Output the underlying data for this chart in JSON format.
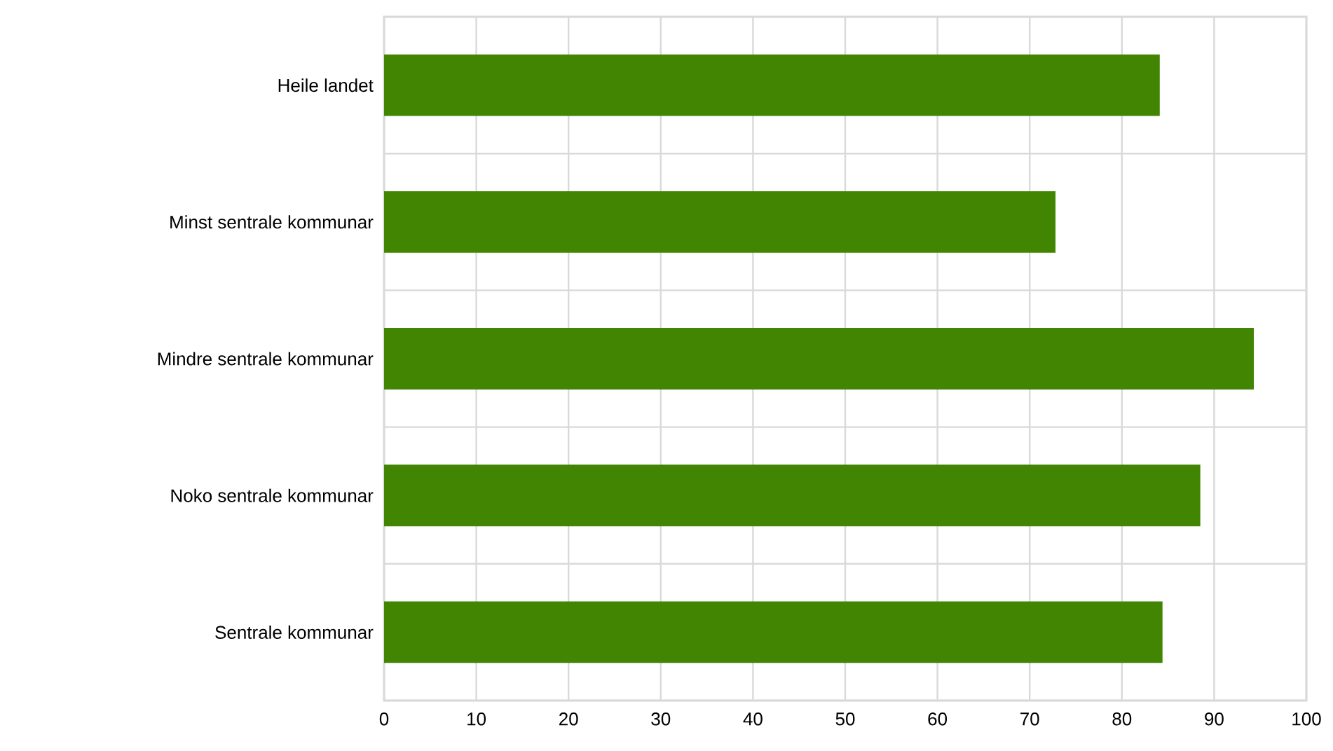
{
  "chart_data": {
    "type": "bar",
    "orientation": "horizontal",
    "categories": [
      "Heile landet",
      "Minst sentrale kommunar",
      "Mindre sentrale kommunar",
      "Noko sentrale kommunar",
      "Sentrale kommunar"
    ],
    "values": [
      84.1,
      72.8,
      94.3,
      88.5,
      84.4
    ],
    "color": "#418502",
    "xlim": [
      0,
      100
    ],
    "xticks": [
      0,
      10,
      20,
      30,
      40,
      50,
      60,
      70,
      80,
      90,
      100
    ],
    "grid": true
  }
}
